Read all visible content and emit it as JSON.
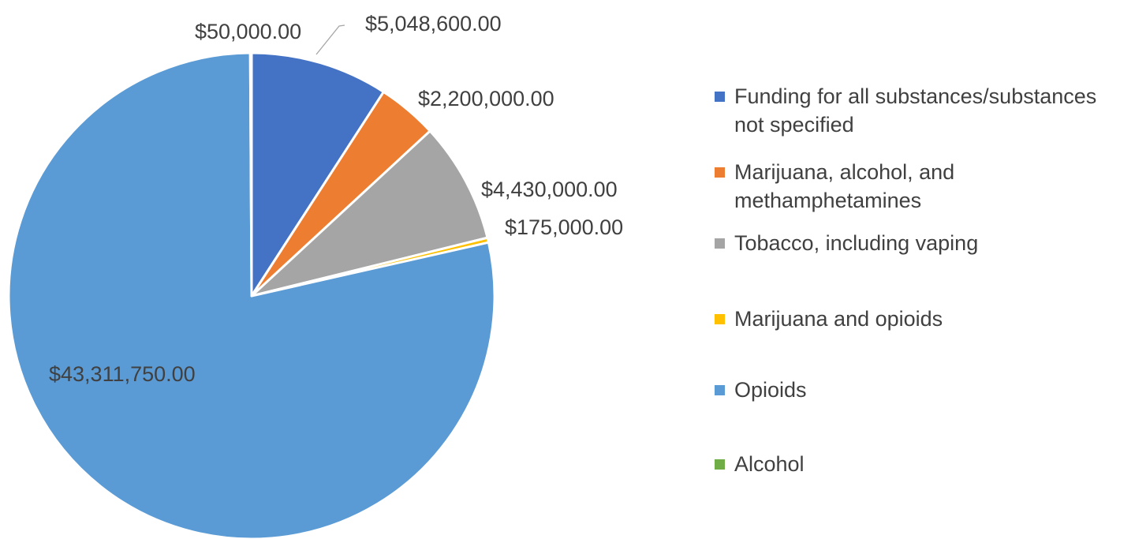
{
  "chart_data": {
    "type": "pie",
    "title": "",
    "legend_position": "right",
    "slices": [
      {
        "name": "Funding for all substances/substances not specified",
        "value": 5048600,
        "label": "$5,048,600.00",
        "color": "#4472C4"
      },
      {
        "name": "Marijuana, alcohol, and methamphetamines",
        "value": 2200000,
        "label": "$2,200,000.00",
        "color": "#ED7D31"
      },
      {
        "name": "Tobacco, including vaping",
        "value": 4430000,
        "label": "$4,430,000.00",
        "color": "#A5A5A5"
      },
      {
        "name": "Marijuana and opioids",
        "value": 175000,
        "label": "$175,000.00",
        "color": "#FFC000"
      },
      {
        "name": "Opioids",
        "value": 43311750,
        "label": "$43,311,750.00",
        "color": "#5B9BD5"
      },
      {
        "name": "Alcohol",
        "value": 50000,
        "label": "$50,000.00",
        "color": "#70AD47"
      }
    ]
  }
}
